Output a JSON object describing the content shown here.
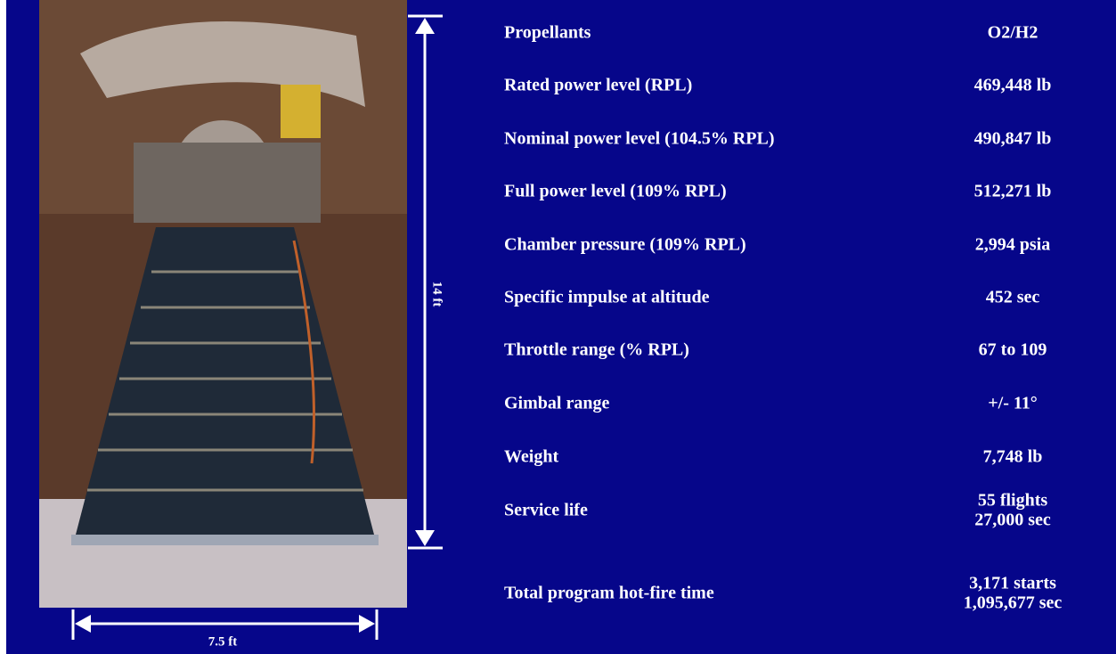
{
  "dimensions": {
    "height": "14 ft",
    "width": "7.5 ft"
  },
  "table": {
    "rows": [
      {
        "label": "Propellants",
        "value": [
          "O2/H2"
        ]
      },
      {
        "label": "Rated power level (RPL)",
        "value": [
          "469,448 lb"
        ]
      },
      {
        "label": "Nominal power level (104.5% RPL)",
        "value": [
          "490,847 lb"
        ]
      },
      {
        "label": "Full power level (109% RPL)",
        "value": [
          "512,271 lb"
        ]
      },
      {
        "label": "Chamber pressure (109% RPL)",
        "value": [
          "2,994 psia"
        ]
      },
      {
        "label": "Specific impulse at altitude",
        "value": [
          "452 sec"
        ]
      },
      {
        "label": "Throttle range (% RPL)",
        "value": [
          "67 to 109"
        ]
      },
      {
        "label": "Gimbal range",
        "value": [
          "+/- 11°"
        ]
      },
      {
        "label": "Weight",
        "value": [
          "7,748 lb"
        ]
      },
      {
        "label": "Service life",
        "value": [
          "55 flights",
          "27,000 sec"
        ]
      },
      {
        "label": "Total program hot-fire time",
        "value": [
          "3,171 starts",
          "1,095,677 sec"
        ]
      }
    ]
  }
}
